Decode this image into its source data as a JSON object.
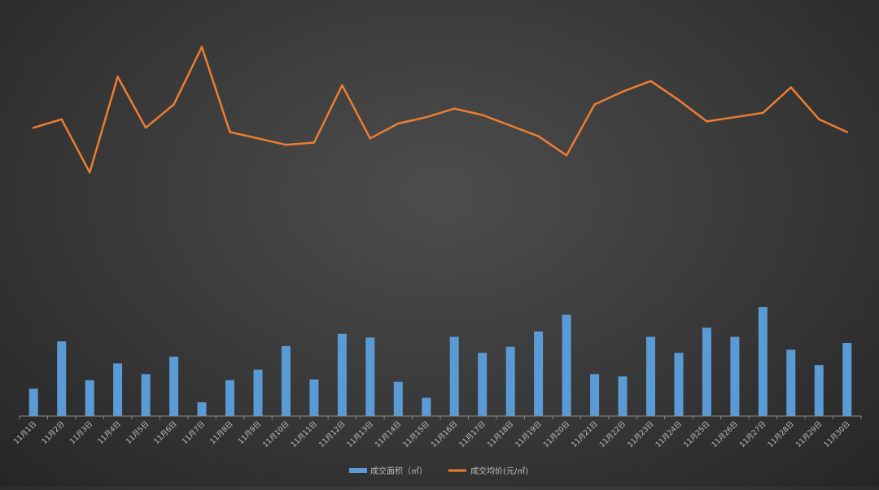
{
  "chart_data": {
    "type": "bar+line",
    "categories": [
      "11月1日",
      "11月2日",
      "11月3日",
      "11月4日",
      "11月5日",
      "11月6日",
      "11月7日",
      "11月8日",
      "11月9日",
      "11月10日",
      "11月11日",
      "11月12日",
      "11月13日",
      "11月14日",
      "11月15日",
      "11月16日",
      "11月17日",
      "11月18日",
      "11月19日",
      "11月20日",
      "11月21日",
      "11月22日",
      "11月23日",
      "11月24日",
      "11月25日",
      "11月26日",
      "11月27日",
      "11月28日",
      "11月29日",
      "11月30日"
    ],
    "series": [
      {
        "name": "成交面积（㎡）",
        "type": "bar",
        "color": "#5b9bd5",
        "values": [
          36,
          98,
          47,
          69,
          55,
          78,
          18,
          47,
          61,
          92,
          48,
          108,
          103,
          45,
          24,
          104,
          83,
          91,
          111,
          133,
          55,
          52,
          104,
          83,
          116,
          104,
          143,
          87,
          67,
          96
        ]
      },
      {
        "name": "成交均价(元/㎡)",
        "type": "line",
        "color": "#ed7d31",
        "values": [
          15400,
          15800,
          13300,
          17800,
          15400,
          16500,
          19200,
          15200,
          14900,
          14600,
          14700,
          17400,
          14900,
          15600,
          15900,
          16300,
          16000,
          15500,
          15000,
          14100,
          16500,
          17100,
          17600,
          16700,
          15700,
          15900,
          16100,
          17300,
          15800,
          15200
        ]
      }
    ],
    "legend_position": "bottom",
    "grid": false,
    "bar_axis_range": [
      0,
      160
    ],
    "line_axis_range": [
      13000,
      19500
    ]
  }
}
